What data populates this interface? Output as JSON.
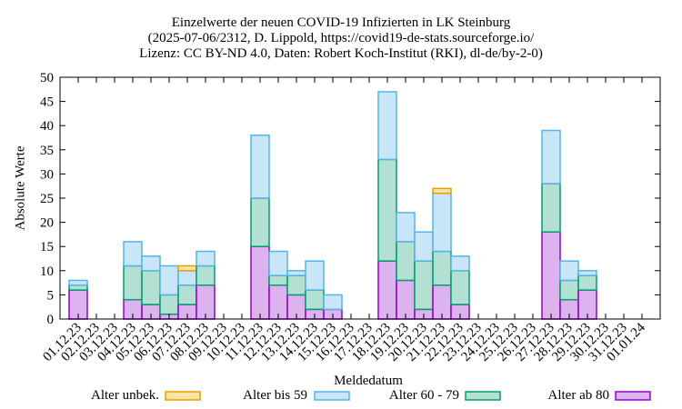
{
  "chart_data": {
    "type": "bar",
    "stacked": true,
    "title": [
      "Einzelwerte der neuen COVID-19 Infizierten in LK Steinburg",
      "(2025-07-06/2312, D. Lippold, https://covid19-de-stats.sourceforge.io/",
      "Lizenz: CC BY-ND 4.0, Daten: Robert Koch-Institut (RKI), dl-de/by-2-0)"
    ],
    "xlabel": "Meldedatum",
    "ylabel": "Absolute Werte",
    "ylim": [
      0,
      50
    ],
    "yticks": [
      0,
      5,
      10,
      15,
      20,
      25,
      30,
      35,
      40,
      45,
      50
    ],
    "categories": [
      "01.12.23",
      "02.12.23",
      "03.12.23",
      "04.12.23",
      "05.12.23",
      "06.12.23",
      "07.12.23",
      "08.12.23",
      "09.12.23",
      "10.12.23",
      "11.12.23",
      "12.12.23",
      "13.12.23",
      "14.12.23",
      "15.12.23",
      "16.12.23",
      "17.12.23",
      "18.12.23",
      "19.12.23",
      "20.12.23",
      "21.12.23",
      "22.12.23",
      "23.12.23",
      "24.12.23",
      "25.12.23",
      "26.12.23",
      "27.12.23",
      "28.12.23",
      "29.12.23",
      "30.12.23",
      "31.12.23",
      "01.01.24"
    ],
    "series": [
      {
        "name": "Alter ab 80",
        "fill": "#dcb3ee",
        "stroke": "#9400d3",
        "values": [
          6,
          0,
          0,
          4,
          3,
          1,
          3,
          7,
          0,
          0,
          15,
          7,
          5,
          2,
          2,
          0,
          0,
          12,
          8,
          2,
          7,
          3,
          0,
          0,
          0,
          0,
          18,
          4,
          6,
          0,
          0,
          0
        ]
      },
      {
        "name": "Alter 60 - 79",
        "fill": "#b3e0d2",
        "stroke": "#009e73",
        "values": [
          1,
          0,
          0,
          7,
          7,
          4,
          4,
          4,
          0,
          0,
          10,
          2,
          4,
          4,
          0,
          0,
          0,
          21,
          8,
          10,
          7,
          7,
          0,
          0,
          0,
          0,
          10,
          4,
          3,
          0,
          0,
          0
        ]
      },
      {
        "name": "Alter bis 59",
        "fill": "#c8e6f7",
        "stroke": "#56b4e9",
        "values": [
          1,
          0,
          0,
          5,
          3,
          6,
          3,
          3,
          0,
          0,
          13,
          5,
          1,
          6,
          3,
          0,
          0,
          14,
          6,
          6,
          12,
          3,
          0,
          0,
          0,
          0,
          11,
          4,
          1,
          0,
          0,
          0
        ]
      },
      {
        "name": "Alter unbek.",
        "fill": "#fce3a6",
        "stroke": "#e69f00",
        "values": [
          0,
          0,
          0,
          0,
          0,
          0,
          1,
          0,
          0,
          0,
          0,
          0,
          0,
          0,
          0,
          0,
          0,
          0,
          0,
          0,
          1,
          0,
          0,
          0,
          0,
          0,
          0,
          0,
          0,
          0,
          0,
          0
        ]
      }
    ],
    "legend_order": [
      "Alter unbek.",
      "Alter bis 59",
      "Alter 60 - 79",
      "Alter ab 80"
    ],
    "legend_position": "bottom"
  }
}
